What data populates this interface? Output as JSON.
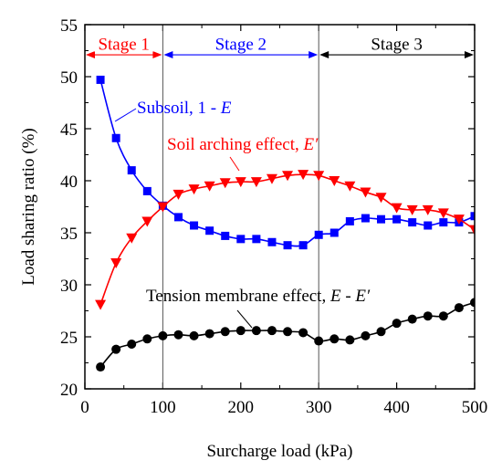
{
  "chart_data": {
    "type": "line",
    "xlabel": "Surcharge load (kPa)",
    "ylabel": "Load sharing ratio (%)",
    "xlim": [
      0,
      500
    ],
    "ylim": [
      20,
      55
    ],
    "xticks": [
      0,
      100,
      200,
      300,
      400,
      500
    ],
    "yticks": [
      20,
      25,
      30,
      35,
      40,
      45,
      50,
      55
    ],
    "grid": false,
    "legend": "none",
    "stage_lines": [
      100,
      300
    ],
    "stages": [
      {
        "label": "Stage 1",
        "from": 0,
        "to": 100,
        "color": "#ff0000"
      },
      {
        "label": "Stage 2",
        "from": 100,
        "to": 300,
        "color": "#0000ff"
      },
      {
        "label": "Stage 3",
        "from": 300,
        "to": 500,
        "color": "#000000"
      }
    ],
    "series": [
      {
        "name": "Subsoil, 1 - E",
        "name_main": "Subsoil, 1 - ",
        "name_italic": "E",
        "color": "#0000ff",
        "marker": "square",
        "x": [
          20,
          40,
          60,
          80,
          100,
          120,
          140,
          160,
          180,
          200,
          220,
          240,
          260,
          280,
          300,
          320,
          340,
          360,
          380,
          400,
          420,
          440,
          460,
          480,
          500
        ],
        "y": [
          49.7,
          44.1,
          41.0,
          39.0,
          37.6,
          36.5,
          35.7,
          35.2,
          34.7,
          34.4,
          34.4,
          34.1,
          33.8,
          33.8,
          34.8,
          35.0,
          36.1,
          36.4,
          36.3,
          36.3,
          36.0,
          35.7,
          36.0,
          36.0,
          36.6
        ]
      },
      {
        "name": "Soil arching effect, E′",
        "name_main": "Soil arching effect, ",
        "name_italic": "E′",
        "color": "#ff0000",
        "marker": "triangle-down",
        "x": [
          20,
          40,
          60,
          80,
          100,
          120,
          140,
          160,
          180,
          200,
          220,
          240,
          260,
          280,
          300,
          320,
          340,
          360,
          380,
          400,
          420,
          440,
          460,
          480,
          500
        ],
        "y": [
          28.1,
          32.1,
          34.5,
          36.1,
          37.5,
          38.7,
          39.2,
          39.5,
          39.8,
          39.9,
          39.9,
          40.2,
          40.5,
          40.6,
          40.5,
          40.0,
          39.5,
          38.9,
          38.4,
          37.4,
          37.2,
          37.2,
          36.9,
          36.3,
          35.3
        ]
      },
      {
        "name": "Tension membrane effect, E - E′",
        "name_main": "Tension membrane effect, ",
        "name_italic": "E",
        "name_mid": " - ",
        "name_italic2": "E′",
        "color": "#000000",
        "marker": "circle",
        "x": [
          20,
          40,
          60,
          80,
          100,
          120,
          140,
          160,
          180,
          200,
          220,
          240,
          260,
          280,
          300,
          320,
          340,
          360,
          380,
          400,
          420,
          440,
          460,
          480,
          500
        ],
        "y": [
          22.1,
          23.8,
          24.3,
          24.8,
          25.1,
          25.2,
          25.1,
          25.3,
          25.5,
          25.6,
          25.6,
          25.6,
          25.5,
          25.4,
          24.6,
          24.8,
          24.7,
          25.1,
          25.5,
          26.3,
          26.7,
          27.0,
          27.0,
          27.8,
          28.3
        ]
      }
    ]
  }
}
